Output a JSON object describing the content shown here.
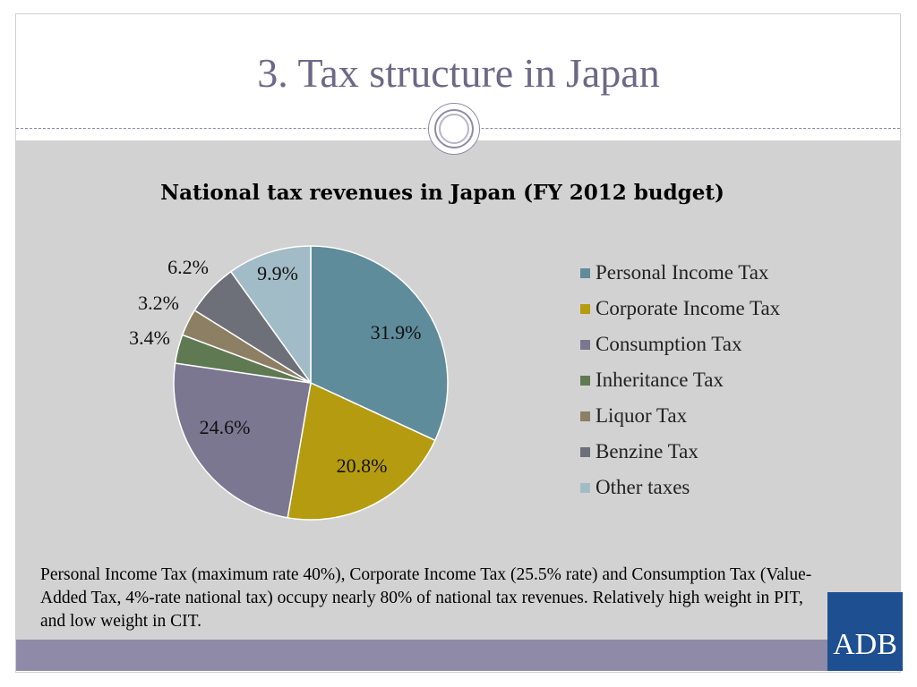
{
  "slide": {
    "title": "3. Tax structure in Japan",
    "note": "Personal Income Tax (maximum rate 40%), Corporate Income Tax (25.5% rate) and Consumption Tax (Value-Added Tax, 4%-rate national tax) occupy nearly 80% of national tax revenues. Relatively high weight in PIT, and low weight in CIT.",
    "logo_text": "ADB"
  },
  "chart_data": {
    "type": "pie",
    "title": "National tax revenues in Japan (FY 2012 budget)",
    "categories": [
      "Personal Income Tax",
      "Corporate Income Tax",
      "Consumption Tax",
      "Inheritance Tax",
      "Liquor Tax",
      "Benzine Tax",
      "Other taxes"
    ],
    "values": [
      31.9,
      20.8,
      24.6,
      3.4,
      3.2,
      6.2,
      9.9
    ],
    "labels": [
      "31.9%",
      "20.8%",
      "24.6%",
      "3.4%",
      "3.2%",
      "6.2%",
      "9.9%"
    ],
    "colors": [
      "#5e8c9b",
      "#b59b0f",
      "#7b7791",
      "#5f7a52",
      "#8c7f64",
      "#6d7078",
      "#a2bcc7"
    ],
    "legend_position": "right"
  }
}
